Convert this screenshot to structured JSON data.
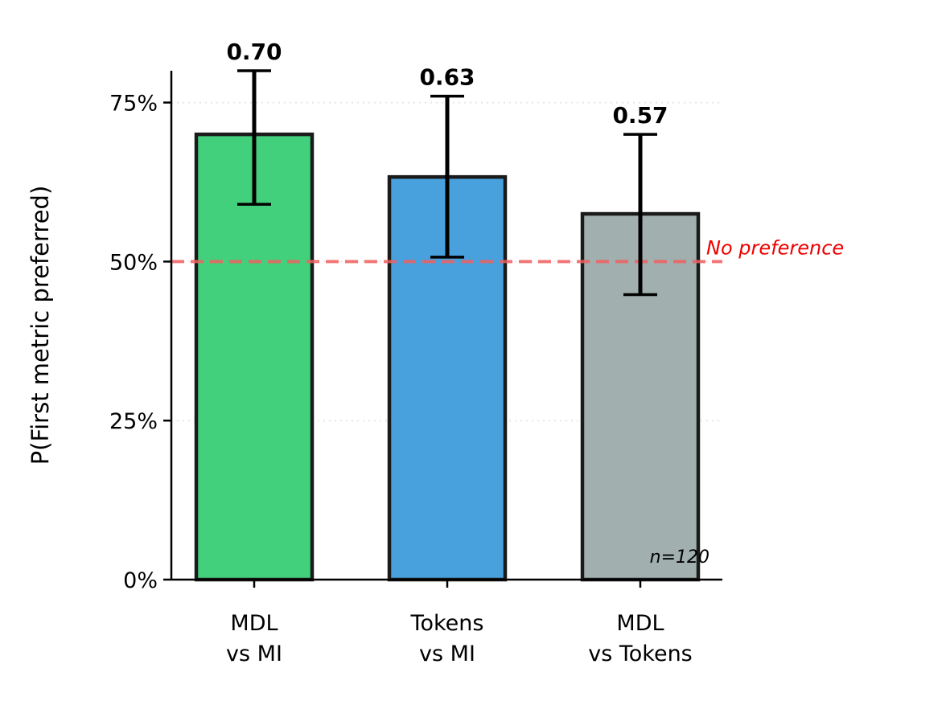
{
  "chart_data": {
    "type": "bar",
    "categories": [
      [
        "MDL",
        "vs MI"
      ],
      [
        "Tokens",
        "vs MI"
      ],
      [
        "MDL",
        "vs Tokens"
      ]
    ],
    "values": [
      0.7,
      0.633,
      0.575
    ],
    "value_labels": [
      "0.70",
      "0.63",
      "0.57"
    ],
    "error_low": [
      0.59,
      0.507,
      0.448
    ],
    "error_high": [
      0.8,
      0.76,
      0.7
    ],
    "colors": [
      "#43d07c",
      "#48a1dc",
      "#a1afaf"
    ],
    "edge_color": "#1a1a1a",
    "ylabel": "P(First metric preferred)",
    "ylim": [
      0,
      0.8
    ],
    "yticks": [
      0,
      0.25,
      0.5,
      0.75
    ],
    "ytick_labels": [
      "0%",
      "25%",
      "50%",
      "75%"
    ],
    "grid": "horizontal dotted",
    "reference_line": {
      "value": 0.5,
      "label": "No preference",
      "color": "#f06060",
      "label_color": "#ee0000"
    },
    "annotation": "n=120"
  }
}
